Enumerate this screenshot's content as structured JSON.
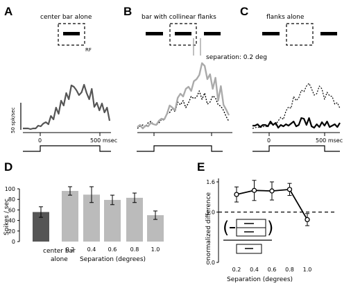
{
  "panels": {
    "A": {
      "letter": "A",
      "title": "center bar alone",
      "rf_label": "RF"
    },
    "B": {
      "letter": "B",
      "title": "bar with collinear flanks",
      "separation_label": "separation: 0.2 deg"
    },
    "C": {
      "letter": "C",
      "title": "flanks alone"
    },
    "D": {
      "letter": "D"
    },
    "E": {
      "letter": "E"
    }
  },
  "psth": {
    "scale_label": "50 spk/sec",
    "time_zero_label": "0",
    "time_end_label": "500 msec",
    "colors": {
      "dark": "#555555",
      "light": "#aaaaaa",
      "black": "#000000"
    },
    "series_A_center": [
      1,
      1,
      1,
      0,
      1,
      1,
      5,
      4,
      8,
      10,
      7,
      19,
      14,
      31,
      22,
      41,
      34,
      52,
      43,
      63,
      61,
      56,
      49,
      53,
      64,
      52,
      43,
      58,
      32,
      38,
      27,
      37,
      24,
      31,
      12
    ],
    "series_B_combined": [
      3,
      6,
      1,
      5,
      4,
      9,
      7,
      6,
      12,
      15,
      14,
      22,
      34,
      31,
      27,
      45,
      51,
      47,
      58,
      61,
      55,
      69,
      72,
      78,
      95,
      91,
      72,
      79,
      58,
      74,
      41,
      62,
      35,
      28,
      20
    ],
    "series_B_flanks": [
      1,
      4,
      6,
      3,
      9,
      11,
      7,
      6,
      9,
      14,
      13,
      22,
      24,
      30,
      25,
      39,
      35,
      41,
      31,
      38,
      47,
      44,
      46,
      55,
      43,
      52,
      36,
      39,
      48,
      45,
      35,
      33,
      27,
      18,
      11
    ],
    "series_C_flanks_alone": [
      5,
      5,
      7,
      3,
      6,
      6,
      4,
      11,
      6,
      9,
      2,
      6,
      4,
      7,
      5,
      8,
      11,
      4,
      6,
      16,
      15,
      6,
      16,
      4,
      2,
      7,
      3,
      10,
      5,
      11,
      3,
      5,
      7,
      3,
      9
    ],
    "series_C_flanks_dotted": [
      1,
      2,
      3,
      2,
      4,
      3,
      5,
      8,
      6,
      6,
      12,
      17,
      14,
      26,
      32,
      30,
      47,
      41,
      45,
      56,
      54,
      62,
      66,
      58,
      49,
      51,
      62,
      58,
      43,
      53,
      48,
      47,
      36,
      38,
      30
    ]
  },
  "chart_data": [
    {
      "type": "bar",
      "panel": "D",
      "ylabel": "Spikes / sec",
      "xlabel": "Separation (degrees)",
      "ylim": [
        0,
        100
      ],
      "yticks": [
        0,
        20,
        40,
        60,
        80,
        100
      ],
      "control_label_line1": "center bar",
      "control_label_line2": "alone",
      "categories": [
        "",
        "0.2",
        "0.4",
        "0.6",
        "0.8",
        "1.0"
      ],
      "values": [
        56,
        96,
        89,
        79,
        83,
        50
      ],
      "errors": [
        10,
        8,
        15,
        9,
        9,
        8
      ],
      "colors": [
        "#555555",
        "#bbbbbb",
        "#bbbbbb",
        "#bbbbbb",
        "#bbbbbb",
        "#bbbbbb"
      ]
    },
    {
      "type": "line",
      "panel": "E",
      "ylabel": "normalized difference",
      "xlabel": "Separation (degrees)",
      "ylim": [
        0,
        1.6
      ],
      "yticks": [
        "0.0",
        "1.0",
        "1.6"
      ],
      "xticks": [
        "0.2",
        "0.4",
        "0.6",
        "0.8",
        "1.0"
      ],
      "x": [
        0.2,
        0.4,
        0.6,
        0.8,
        1.0
      ],
      "y": [
        1.35,
        1.43,
        1.42,
        1.45,
        0.85
      ],
      "errors": [
        0.15,
        0.2,
        0.18,
        0.12,
        0.12
      ],
      "reference_line": 1.0
    }
  ]
}
